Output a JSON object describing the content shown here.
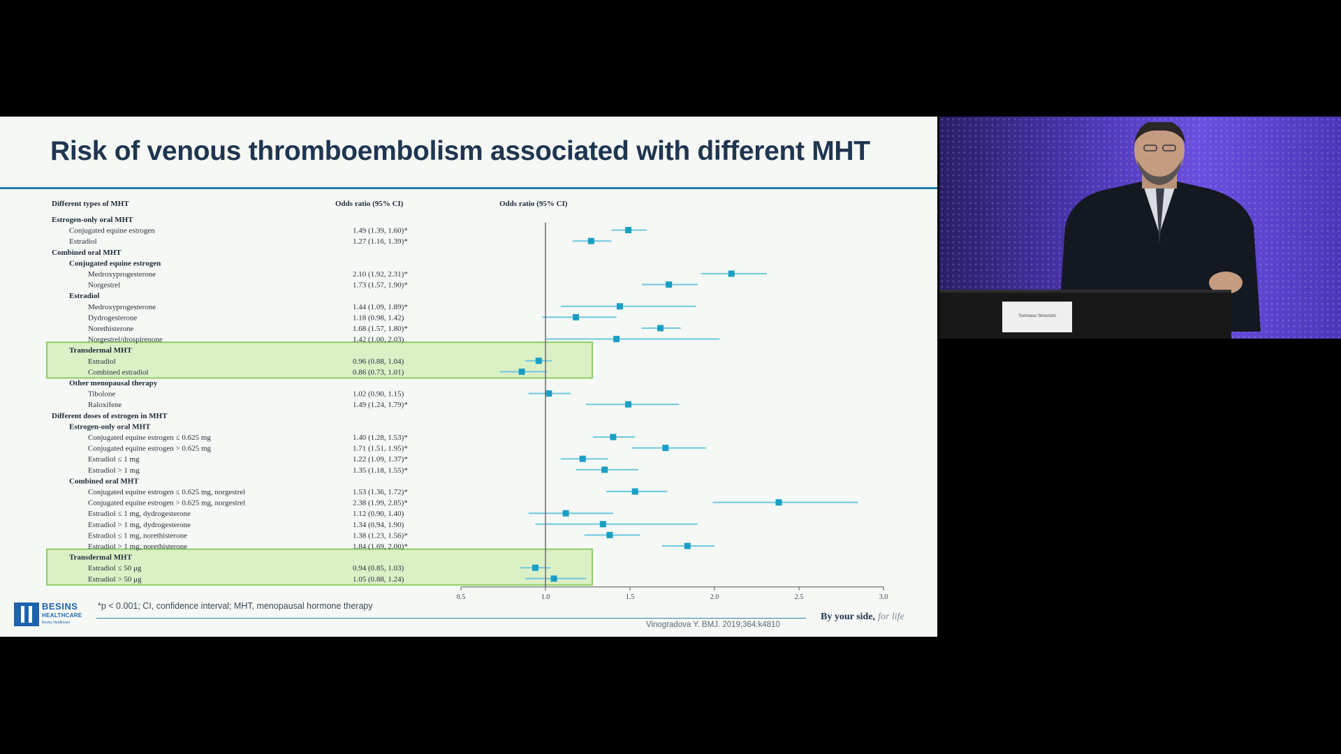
{
  "slide": {
    "title": "Risk of venous thromboembolism associated with different MHT",
    "col_headers": {
      "types": "Different types of MHT",
      "or_ci_text": "Odds ratio (95% CI)",
      "or_ci_plot": "Odds ratio (95% CI)"
    },
    "footnote": "*p < 0.001; CI, confidence interval; MHT, menopausal hormone therapy",
    "citation": "Vinogradova Y. BMJ. 2019;364:k4810",
    "tagline": "By your side,",
    "tagline_script": "for life",
    "logo": {
      "word": "BESINS",
      "sub": "HEALTHCARE",
      "tag": "Besins Healthcare"
    }
  },
  "speaker": {
    "nameplate": "Tommaso Simoncini"
  },
  "colors": {
    "accent": "#1f3550",
    "rule": "#1e7fa8",
    "marker": "#1a9fc4",
    "ci_line": "#6fc6e0",
    "highlight_fill": "#dcf0c6",
    "highlight_border": "#8dcc64"
  },
  "chart_data": {
    "type": "forest",
    "title": "",
    "xlabel": "",
    "xlim": [
      0.5,
      3.0
    ],
    "xticks": [
      "0.5",
      "1.0",
      "1.5",
      "2.0",
      "2.5",
      "3.0"
    ],
    "reference_line": 1.0,
    "highlighted_groups": [
      "Transdermal MHT (types)",
      "Transdermal MHT (doses)"
    ],
    "rows": [
      {
        "label": "Estrogen-only oral MHT",
        "level": 0
      },
      {
        "label": "Conjugated equine estrogen",
        "level": 1,
        "or": 1.49,
        "lo": 1.39,
        "hi": 1.6,
        "text": "1.49 (1.39, 1.60)*"
      },
      {
        "label": "Estradiol",
        "level": 1,
        "or": 1.27,
        "lo": 1.16,
        "hi": 1.39,
        "text": "1.27 (1.16, 1.39)*"
      },
      {
        "label": "Combined oral MHT",
        "level": 0
      },
      {
        "label": "Conjugated equine estrogen",
        "level": 1,
        "bold": true
      },
      {
        "label": "Medroxyprogesterone",
        "level": 2,
        "or": 2.1,
        "lo": 1.92,
        "hi": 2.31,
        "text": "2.10 (1.92, 2.31)*"
      },
      {
        "label": "Norgestrel",
        "level": 2,
        "or": 1.73,
        "lo": 1.57,
        "hi": 1.9,
        "text": "1.73 (1.57, 1.90)*"
      },
      {
        "label": "Estradiol",
        "level": 1,
        "bold": true
      },
      {
        "label": "Medroxyprogesterone",
        "level": 2,
        "or": 1.44,
        "lo": 1.09,
        "hi": 1.89,
        "text": "1.44 (1.09, 1.89)*"
      },
      {
        "label": "Dydrogesterone",
        "level": 2,
        "or": 1.18,
        "lo": 0.98,
        "hi": 1.42,
        "text": "1.18 (0.98, 1.42)"
      },
      {
        "label": "Norethisterone",
        "level": 2,
        "or": 1.68,
        "lo": 1.57,
        "hi": 1.8,
        "text": "1.68 (1.57, 1.80)*"
      },
      {
        "label": "Norgestrel/drospirenone",
        "level": 2,
        "or": 1.42,
        "lo": 1.0,
        "hi": 2.03,
        "text": "1.42 (1.00, 2.03)"
      },
      {
        "label": "Transdermal MHT",
        "level": 1,
        "bold": true,
        "highlight_start": true
      },
      {
        "label": "Estradiol",
        "level": 2,
        "or": 0.96,
        "lo": 0.88,
        "hi": 1.04,
        "text": "0.96 (0.88, 1.04)"
      },
      {
        "label": "Combined estradiol",
        "level": 2,
        "or": 0.86,
        "lo": 0.73,
        "hi": 1.01,
        "text": "0.86 (0.73, 1.01)",
        "highlight_end": true
      },
      {
        "label": "Other menopausal therapy",
        "level": 1,
        "bold": true
      },
      {
        "label": "Tibolone",
        "level": 2,
        "or": 1.02,
        "lo": 0.9,
        "hi": 1.15,
        "text": "1.02 (0.90, 1.15)"
      },
      {
        "label": "Raloxifene",
        "level": 2,
        "or": 1.49,
        "lo": 1.24,
        "hi": 1.79,
        "text": "1.49 (1.24, 1.79)*"
      },
      {
        "label": "Different doses of estrogen in MHT",
        "level": 0
      },
      {
        "label": "Estrogen-only oral MHT",
        "level": 1,
        "bold": true
      },
      {
        "label": "Conjugated equine estrogen ≤ 0.625 mg",
        "level": 2,
        "or": 1.4,
        "lo": 1.28,
        "hi": 1.53,
        "text": "1.40 (1.28, 1.53)*"
      },
      {
        "label": "Conjugated equine estrogen > 0.625 mg",
        "level": 2,
        "or": 1.71,
        "lo": 1.51,
        "hi": 1.95,
        "text": "1.71 (1.51, 1.95)*"
      },
      {
        "label": "Estradiol ≤ 1 mg",
        "level": 2,
        "or": 1.22,
        "lo": 1.09,
        "hi": 1.37,
        "text": "1.22 (1.09, 1.37)*"
      },
      {
        "label": "Estradiol > 1 mg",
        "level": 2,
        "or": 1.35,
        "lo": 1.18,
        "hi": 1.55,
        "text": "1.35 (1.18, 1.55)*"
      },
      {
        "label": "Combined oral MHT",
        "level": 1,
        "bold": true
      },
      {
        "label": "Conjugated equine estrogen ≤ 0.625 mg, norgestrel",
        "level": 2,
        "or": 1.53,
        "lo": 1.36,
        "hi": 1.72,
        "text": "1.53 (1.36, 1.72)*"
      },
      {
        "label": "Conjugated equine estrogen > 0.625 mg, norgestrel",
        "level": 2,
        "or": 2.38,
        "lo": 1.99,
        "hi": 2.85,
        "text": "2.38 (1.99, 2.85)*"
      },
      {
        "label": "Estradiol ≤ 1 mg, dydrogesterone",
        "level": 2,
        "or": 1.12,
        "lo": 0.9,
        "hi": 1.4,
        "text": "1.12 (0.90, 1.40)"
      },
      {
        "label": "Estradiol > 1 mg, dydrogesterone",
        "level": 2,
        "or": 1.34,
        "lo": 0.94,
        "hi": 1.9,
        "text": "1.34 (0.94, 1.90)"
      },
      {
        "label": "Estradiol ≤ 1 mg, norethisterone",
        "level": 2,
        "or": 1.38,
        "lo": 1.23,
        "hi": 1.56,
        "text": "1.38 (1.23, 1.56)*"
      },
      {
        "label": "Estradiol > 1 mg, norethisterone",
        "level": 2,
        "or": 1.84,
        "lo": 1.69,
        "hi": 2.0,
        "text": "1.84 (1.69, 2.00)*"
      },
      {
        "label": "Transdermal MHT",
        "level": 1,
        "bold": true,
        "highlight_start": true
      },
      {
        "label": "Estradiol ≤ 50 μg",
        "level": 2,
        "or": 0.94,
        "lo": 0.85,
        "hi": 1.03,
        "text": "0.94 (0.85, 1.03)"
      },
      {
        "label": "Estradiol > 50 μg",
        "level": 2,
        "or": 1.05,
        "lo": 0.88,
        "hi": 1.24,
        "text": "1.05 (0.88, 1.24)",
        "highlight_end": true
      }
    ]
  }
}
